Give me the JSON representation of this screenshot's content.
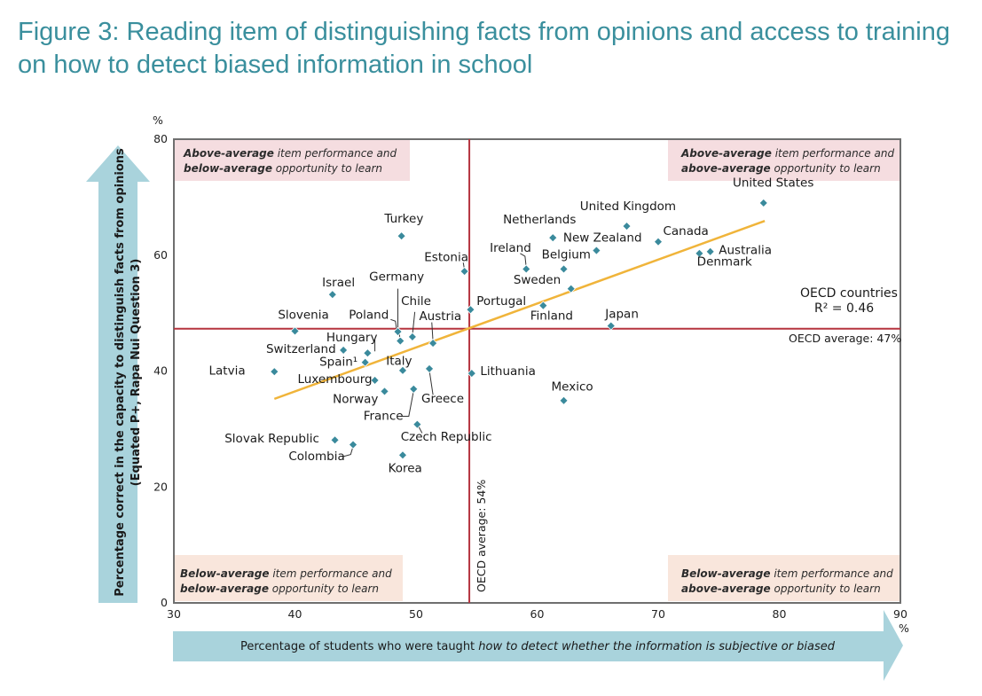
{
  "title": "Figure 3: Reading item of distinguishing facts from opinions and access to training on how to detect biased information in school",
  "colors": {
    "title": "#3a8f9d",
    "point": "#3a8a9c",
    "trend": "#f0b43a",
    "average_line": "#b5343f",
    "frame": "#6f6f6f",
    "arrow": "#a9d3dc",
    "quad_top": "#f5dde0",
    "quad_bottom": "#f9e6dc"
  },
  "chart_data": {
    "type": "scatter",
    "title": "Figure 3: Reading item of distinguishing facts from opinions and access to training on how to detect biased information in school",
    "xlabel_prefix": "Percentage of students who were taught ",
    "xlabel_italic": "how to detect whether the information is subjective or biased",
    "ylabel_line1": "Percentage correct in the capacity to distinguish facts from opinions",
    "ylabel_line2": "(Equated P+, Rapa Nui Question 3)",
    "x_unit": "%",
    "y_unit": "%",
    "xlim": [
      30,
      90
    ],
    "ylim": [
      0,
      80
    ],
    "xticks": [
      30,
      40,
      50,
      60,
      70,
      80,
      90
    ],
    "yticks": [
      0,
      20,
      40,
      60,
      80
    ],
    "oecd_x_avg": 54.4,
    "oecd_y_avg": 47.3,
    "oecd_x_label": "OECD average: 54%",
    "oecd_y_label": "OECD average: 47%",
    "stats_label": "OECD countries",
    "r2_label": "R² = 0.46",
    "trendline": {
      "x": [
        38.3,
        78.8
      ],
      "y": [
        35.2,
        65.9
      ]
    },
    "quadrants": {
      "top_left": {
        "bold1": "Above-average",
        "rest1": " item performance and",
        "bold2": "below-average",
        "rest2": " opportunity to learn"
      },
      "top_right": {
        "bold1": "Above-average",
        "rest1": " item performance and",
        "bold2": "above-average",
        "rest2": " opportunity to learn"
      },
      "bottom_left": {
        "bold1": "Below-average",
        "rest1": " item performance and",
        "bold2": "below-average",
        "rest2": " opportunity to learn"
      },
      "bottom_right": {
        "bold1": "Below-average",
        "rest1": " item performance and",
        "bold2": "above-average",
        "rest2": " opportunity to learn"
      }
    },
    "points": [
      {
        "name": "United States",
        "x": 78.7,
        "y": 69.0
      },
      {
        "name": "United Kingdom",
        "x": 67.4,
        "y": 65.0
      },
      {
        "name": "Canada",
        "x": 70.0,
        "y": 62.3
      },
      {
        "name": "Australia",
        "x": 74.3,
        "y": 60.6
      },
      {
        "name": "Denmark",
        "x": 73.4,
        "y": 60.3
      },
      {
        "name": "New Zealand",
        "x": 64.9,
        "y": 60.8
      },
      {
        "name": "Netherlands",
        "x": 61.3,
        "y": 63.0
      },
      {
        "name": "Belgium",
        "x": 62.2,
        "y": 57.6
      },
      {
        "name": "Ireland",
        "x": 59.1,
        "y": 57.6
      },
      {
        "name": "Sweden",
        "x": 62.8,
        "y": 54.2
      },
      {
        "name": "Finland",
        "x": 60.5,
        "y": 51.3
      },
      {
        "name": "Japan",
        "x": 66.1,
        "y": 47.8
      },
      {
        "name": "Mexico",
        "x": 62.2,
        "y": 34.9
      },
      {
        "name": "Turkey",
        "x": 48.8,
        "y": 63.3
      },
      {
        "name": "Estonia",
        "x": 54.0,
        "y": 57.2
      },
      {
        "name": "Portugal",
        "x": 54.5,
        "y": 50.6
      },
      {
        "name": "Lithuania",
        "x": 54.6,
        "y": 39.6
      },
      {
        "name": "Israel",
        "x": 43.1,
        "y": 53.2
      },
      {
        "name": "Germany",
        "x": 48.7,
        "y": 45.2
      },
      {
        "name": "Poland",
        "x": 48.5,
        "y": 46.8
      },
      {
        "name": "Chile",
        "x": 49.7,
        "y": 45.9
      },
      {
        "name": "Austria",
        "x": 51.4,
        "y": 44.8
      },
      {
        "name": "Slovenia",
        "x": 40.0,
        "y": 46.9
      },
      {
        "name": "Hungary",
        "x": 46.0,
        "y": 43.1
      },
      {
        "name": "Switzerland",
        "x": 44.0,
        "y": 43.6
      },
      {
        "name": "Spain",
        "x": 45.8,
        "y": 41.5
      },
      {
        "name": "Italy",
        "x": 48.9,
        "y": 40.1
      },
      {
        "name": "Latvia",
        "x": 38.3,
        "y": 39.9
      },
      {
        "name": "Luxembourg",
        "x": 46.6,
        "y": 38.4
      },
      {
        "name": "Norway",
        "x": 47.4,
        "y": 36.5
      },
      {
        "name": "Greece",
        "x": 51.1,
        "y": 40.4
      },
      {
        "name": "France",
        "x": 49.8,
        "y": 36.9
      },
      {
        "name": "Czech Republic",
        "x": 50.1,
        "y": 30.8
      },
      {
        "name": "Slovak Republic",
        "x": 43.3,
        "y": 28.1
      },
      {
        "name": "Colombia",
        "x": 44.8,
        "y": 27.3
      },
      {
        "name": "Korea",
        "x": 48.9,
        "y": 25.5
      }
    ],
    "labels": [
      {
        "name": "United States",
        "text": "United States",
        "x": 79.5,
        "y": 71.8,
        "anchor": "middle"
      },
      {
        "name": "United Kingdom",
        "text": "United Kingdom",
        "x": 67.5,
        "y": 67.8,
        "anchor": "middle"
      },
      {
        "name": "Canada",
        "text": "Canada",
        "x": 70.4,
        "y": 63.5,
        "anchor": "start"
      },
      {
        "name": "Australia",
        "text": "Australia",
        "x": 75.0,
        "y": 60.2,
        "anchor": "start"
      },
      {
        "name": "Denmark",
        "text": "Denmark",
        "x": 73.2,
        "y": 58.2,
        "anchor": "start"
      },
      {
        "name": "New Zealand",
        "text": "New Zealand",
        "x": 65.4,
        "y": 62.3,
        "anchor": "middle"
      },
      {
        "name": "Netherlands",
        "text": "Netherlands",
        "x": 60.2,
        "y": 65.5,
        "anchor": "middle"
      },
      {
        "name": "Belgium",
        "text": "Belgium",
        "x": 62.4,
        "y": 59.4,
        "anchor": "middle"
      },
      {
        "name": "Ireland",
        "text": "Ireland",
        "x": 57.8,
        "y": 60.6,
        "anchor": "middle"
      },
      {
        "name": "Sweden",
        "text": "Sweden",
        "x": 60.0,
        "y": 55.1,
        "anchor": "middle"
      },
      {
        "name": "Finland",
        "text": "Finland",
        "x": 61.2,
        "y": 48.9,
        "anchor": "middle"
      },
      {
        "name": "Japan",
        "text": "Japan",
        "x": 67.0,
        "y": 49.2,
        "anchor": "middle"
      },
      {
        "name": "Mexico",
        "text": "Mexico",
        "x": 62.9,
        "y": 36.6,
        "anchor": "middle"
      },
      {
        "name": "Turkey",
        "text": "Turkey",
        "x": 49.0,
        "y": 65.6,
        "anchor": "middle"
      },
      {
        "name": "Estonia",
        "text": "Estonia",
        "x": 52.5,
        "y": 59.0,
        "anchor": "middle"
      },
      {
        "name": "Portugal",
        "text": "Portugal",
        "x": 55.0,
        "y": 51.4,
        "anchor": "start"
      },
      {
        "name": "Lithuania",
        "text": "Lithuania",
        "x": 55.3,
        "y": 39.3,
        "anchor": "start"
      },
      {
        "name": "Israel",
        "text": "Israel",
        "x": 43.6,
        "y": 54.6,
        "anchor": "middle"
      },
      {
        "name": "Germany",
        "text": "Germany",
        "x": 48.4,
        "y": 55.6,
        "anchor": "middle"
      },
      {
        "name": "Poland",
        "text": "Poland",
        "x": 46.1,
        "y": 49.0,
        "anchor": "middle"
      },
      {
        "name": "Chile",
        "text": "Chile",
        "x": 50.0,
        "y": 51.4,
        "anchor": "middle"
      },
      {
        "name": "Austria",
        "text": "Austria",
        "x": 52.0,
        "y": 48.8,
        "anchor": "middle"
      },
      {
        "name": "Slovenia",
        "text": "Slovenia",
        "x": 40.7,
        "y": 49.0,
        "anchor": "middle"
      },
      {
        "name": "Hungary",
        "text": "Hungary",
        "x": 44.7,
        "y": 45.1,
        "anchor": "middle"
      },
      {
        "name": "Switzerland",
        "text": "Switzerland",
        "x": 40.5,
        "y": 43.1,
        "anchor": "middle"
      },
      {
        "name": "Spain",
        "text": "Spain¹",
        "x": 43.6,
        "y": 40.9,
        "anchor": "middle"
      },
      {
        "name": "Italy",
        "text": "Italy",
        "x": 48.6,
        "y": 41.1,
        "anchor": "middle"
      },
      {
        "name": "Latvia",
        "text": "Latvia",
        "x": 34.4,
        "y": 39.4,
        "anchor": "middle"
      },
      {
        "name": "Luxembourg",
        "text": "Luxembourg",
        "x": 43.3,
        "y": 37.9,
        "anchor": "middle"
      },
      {
        "name": "Norway",
        "text": "Norway",
        "x": 45.0,
        "y": 34.5,
        "anchor": "middle"
      },
      {
        "name": "Greece",
        "text": "Greece",
        "x": 52.2,
        "y": 34.6,
        "anchor": "middle"
      },
      {
        "name": "France",
        "text": "France",
        "x": 47.3,
        "y": 31.6,
        "anchor": "middle"
      },
      {
        "name": "Czech Republic",
        "text": "Czech Republic",
        "x": 52.5,
        "y": 28.0,
        "anchor": "middle"
      },
      {
        "name": "Slovak Republic",
        "text": "Slovak Republic",
        "x": 38.1,
        "y": 27.7,
        "anchor": "middle"
      },
      {
        "name": "Colombia",
        "text": "Colombia",
        "x": 41.8,
        "y": 24.6,
        "anchor": "middle"
      },
      {
        "name": "Korea",
        "text": "Korea",
        "x": 49.1,
        "y": 22.6,
        "anchor": "middle"
      }
    ],
    "leaders": [
      {
        "name": "Ireland",
        "pts": [
          [
            58.6,
            60.3
          ],
          [
            59.0,
            59.8
          ],
          [
            59.1,
            57.9
          ]
        ]
      },
      {
        "name": "Estonia",
        "pts": [
          [
            53.9,
            58.7
          ],
          [
            54.0,
            57.5
          ]
        ]
      },
      {
        "name": "Germany",
        "pts": [
          [
            48.5,
            54.2
          ],
          [
            48.5,
            47.5
          ],
          [
            48.7,
            45.5
          ]
        ]
      },
      {
        "name": "Poland",
        "pts": [
          [
            47.9,
            48.9
          ],
          [
            48.3,
            48.6
          ],
          [
            48.4,
            47.1
          ]
        ]
      },
      {
        "name": "Chile",
        "pts": [
          [
            49.9,
            50.2
          ],
          [
            49.7,
            46.2
          ]
        ]
      },
      {
        "name": "Austria",
        "pts": [
          [
            51.3,
            48.4
          ],
          [
            51.4,
            45.1
          ]
        ]
      },
      {
        "name": "Hungary",
        "pts": [
          [
            46.6,
            45.5
          ],
          [
            46.6,
            43.4
          ]
        ]
      },
      {
        "name": "France",
        "pts": [
          [
            48.7,
            32.2
          ],
          [
            49.4,
            32.2
          ],
          [
            49.8,
            36.6
          ]
        ]
      },
      {
        "name": "Greece",
        "pts": [
          [
            51.4,
            35.9
          ],
          [
            51.1,
            40.1
          ]
        ]
      },
      {
        "name": "Colombia",
        "pts": [
          [
            43.9,
            25.2
          ],
          [
            44.6,
            25.6
          ],
          [
            44.8,
            27.0
          ]
        ]
      },
      {
        "name": "Czech Republic",
        "pts": [
          [
            50.5,
            29.3
          ],
          [
            50.2,
            30.5
          ]
        ]
      }
    ]
  }
}
